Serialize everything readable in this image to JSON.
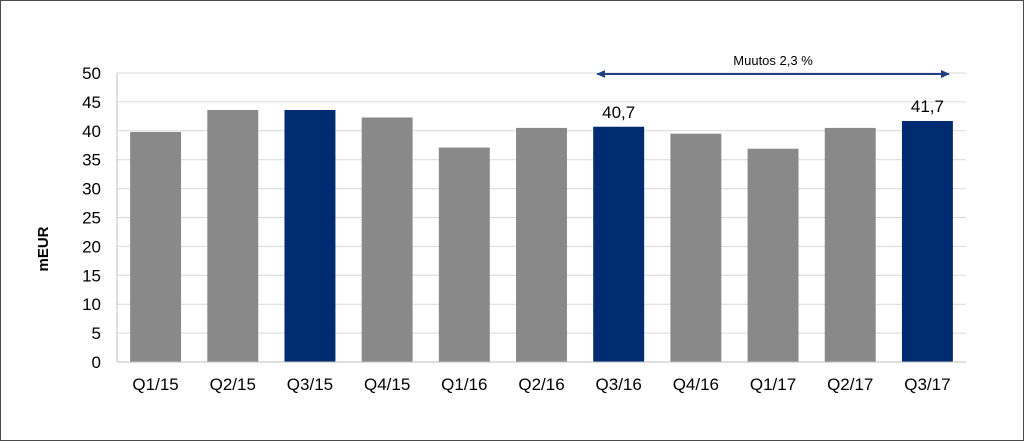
{
  "chart_data": {
    "type": "bar",
    "categories": [
      "Q1/15",
      "Q2/15",
      "Q3/15",
      "Q4/15",
      "Q1/16",
      "Q2/16",
      "Q3/16",
      "Q4/16",
      "Q1/17",
      "Q2/17",
      "Q3/17"
    ],
    "values": [
      39.8,
      43.6,
      43.6,
      42.3,
      37.1,
      40.5,
      40.7,
      39.5,
      36.9,
      40.5,
      41.7
    ],
    "highlighted": [
      "Q3/15",
      "Q3/16",
      "Q3/17"
    ],
    "colors": {
      "default": "#898989",
      "highlight": "#002a72",
      "arrow": "#1f3f7f"
    },
    "data_labels": [
      {
        "category": "Q3/16",
        "text": "40,7"
      },
      {
        "category": "Q3/17",
        "text": "41,7"
      }
    ],
    "ylabel": "mEUR",
    "ylim": [
      0,
      50
    ],
    "yticks": [
      0,
      5,
      10,
      15,
      20,
      25,
      30,
      35,
      40,
      45,
      50
    ],
    "grid": true,
    "annotation": {
      "text": "Muutos 2,3 %",
      "from": "Q3/16",
      "to": "Q3/17"
    }
  }
}
